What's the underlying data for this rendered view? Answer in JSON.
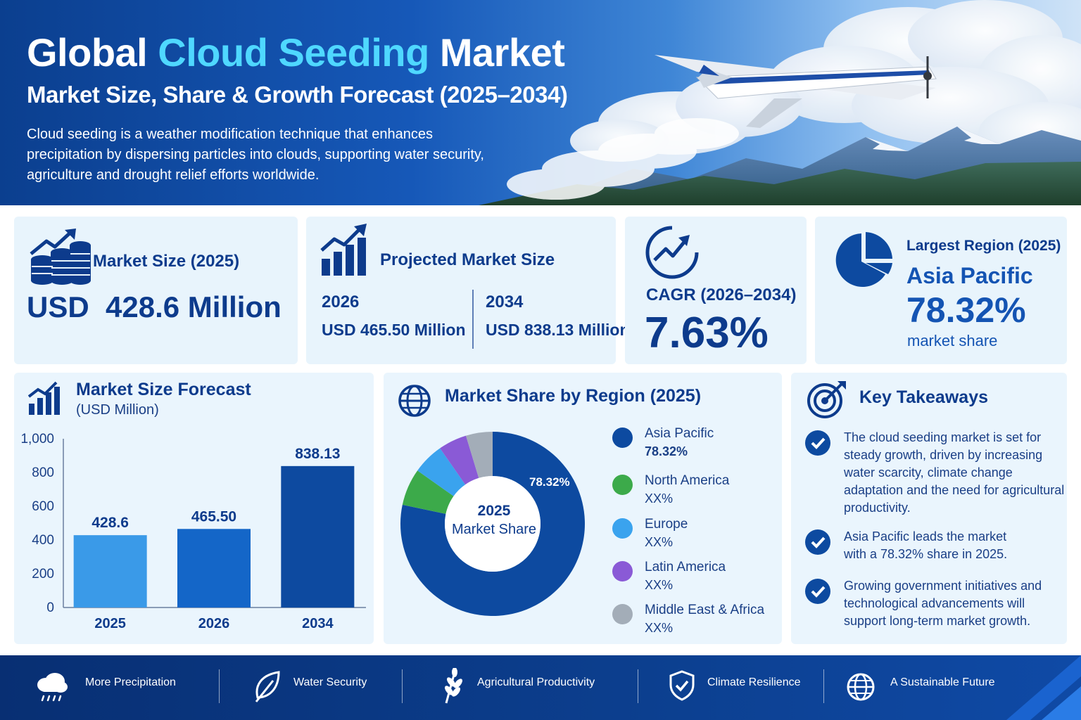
{
  "header": {
    "title_part1": "Global ",
    "title_accent": "Cloud Seeding",
    "title_part2": " Market",
    "subtitle": "Market Size, Share & Growth Forecast (2025–2034)",
    "intro": "Cloud seeding is a weather modification technique that enhances precipitation by dispersing particles into clouds, supporting water security, agriculture and drought relief efforts worldwide."
  },
  "kpis": {
    "market_size": {
      "label": "Market Size (2025)",
      "value": "USD  428.6 Million",
      "icon": "coins-growth-icon"
    },
    "projected": {
      "label": "Projected Market Size",
      "year1": "2026",
      "value1": "USD 465.50 Million",
      "year2": "2034",
      "value2": "USD 838.13 Million",
      "icon": "bar-growth-icon"
    },
    "cagr": {
      "label": "CAGR (2026–2034)",
      "value": "7.63%",
      "icon": "growth-circle-icon"
    },
    "region": {
      "label": "Largest Region (2025)",
      "name": "Asia Pacific",
      "value": "78.32%",
      "note": "market share",
      "icon": "pie-icon"
    }
  },
  "forecast": {
    "title": "Market Size Forecast",
    "unit": "(USD Million)"
  },
  "region_share": {
    "title": "Market Share by Region (2025)",
    "center_line1": "2025",
    "center_line2": "Market Share",
    "slice_label": "78.32%",
    "legend": [
      {
        "name": "Asia Pacific",
        "value": "78.32%",
        "color": "#0d4aa0"
      },
      {
        "name": "North America",
        "value": "XX%",
        "color": "#3caa4a"
      },
      {
        "name": "Europe",
        "value": "XX%",
        "color": "#3aa3ee"
      },
      {
        "name": "Latin America",
        "value": "XX%",
        "color": "#8a5ad6"
      },
      {
        "name": "Middle East & Africa",
        "value": "XX%",
        "color": "#a3adb8"
      }
    ]
  },
  "takeaways": {
    "title": "Key Takeaways",
    "items": [
      "The cloud seeding market is set for steady growth, driven by increasing water scarcity, climate change adaptation and the need for agricultural productivity.",
      "Asia Pacific leads the market with a 78.32% share in 2025.",
      "Growing government initiatives and technological advancements will support long-term market growth."
    ]
  },
  "footer": {
    "items": [
      {
        "label": "More Precipitation",
        "icon": "rain-cloud-icon"
      },
      {
        "label": "Water Security",
        "icon": "leaf-icon"
      },
      {
        "label": "Agricultural Productivity",
        "icon": "wheat-icon"
      },
      {
        "label": "Climate Resilience",
        "icon": "shield-check-icon"
      },
      {
        "label": "A Sustainable Future",
        "icon": "globe-icon"
      }
    ]
  },
  "chart_data": [
    {
      "type": "bar",
      "title": "Market Size Forecast",
      "subtitle": "(USD Million)",
      "categories": [
        "2025",
        "2026",
        "2034"
      ],
      "values": [
        428.6,
        465.5,
        838.13
      ],
      "value_labels": [
        "428.6",
        "465.50",
        "838.13"
      ],
      "colors": [
        "#3a9ae8",
        "#1466c8",
        "#0d4aa0"
      ],
      "ylim": [
        0,
        1000
      ],
      "yticks": [
        0,
        200,
        400,
        600,
        800,
        1000
      ],
      "ytick_labels": [
        "0",
        "200",
        "400",
        "600",
        "800",
        "1,000"
      ],
      "grid": false
    },
    {
      "type": "pie",
      "title": "Market Share by Region (2025)",
      "donut": true,
      "slices": [
        {
          "name": "Asia Pacific",
          "value": 78.32,
          "color": "#0d4aa0"
        },
        {
          "name": "North America",
          "value": 6.5,
          "color": "#3caa4a"
        },
        {
          "name": "Europe",
          "value": 5.5,
          "color": "#3aa3ee"
        },
        {
          "name": "Latin America",
          "value": 5.0,
          "color": "#8a5ad6"
        },
        {
          "name": "Middle East & Africa",
          "value": 4.68,
          "color": "#a3adb8"
        }
      ]
    }
  ]
}
